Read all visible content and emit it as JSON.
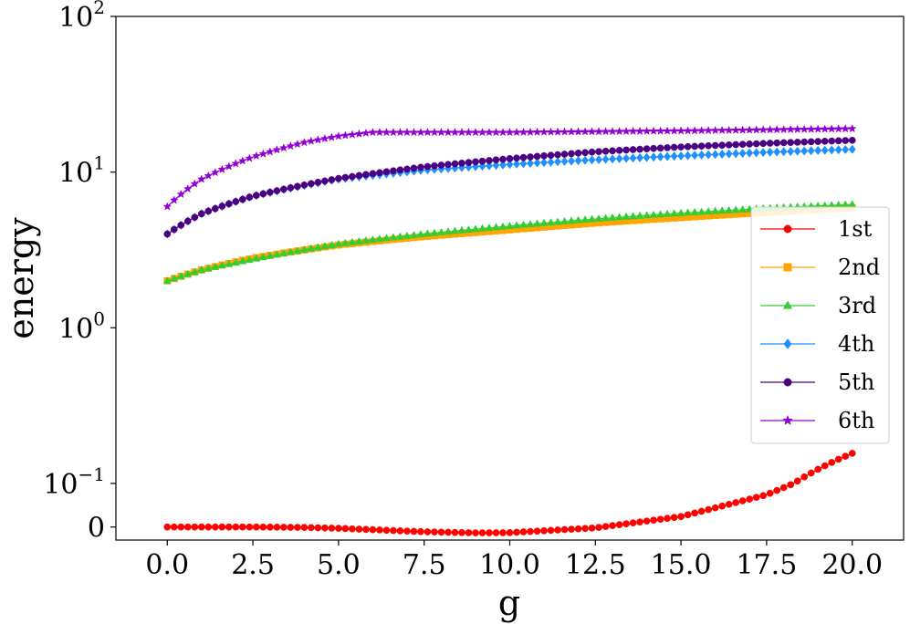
{
  "chart_data": {
    "type": "line",
    "title": "",
    "xlabel": "g",
    "ylabel": "energy",
    "xlim": [
      -1.5,
      21.5
    ],
    "x_ticks": [
      0,
      2.5,
      5,
      7.5,
      10,
      12.5,
      15,
      17.5,
      20
    ],
    "x_tick_labels": [
      "0.0",
      "2.5",
      "5.0",
      "7.5",
      "10.0",
      "12.5",
      "15.0",
      "17.5",
      "20.0"
    ],
    "y_scale": "symlog",
    "ylim": [
      -0.03,
      100
    ],
    "y_ticks": [
      0,
      0.1,
      1,
      10,
      100
    ],
    "y_tick_labels": [
      {
        "base": "0",
        "exp": ""
      },
      {
        "base": "10",
        "exp": "−1"
      },
      {
        "base": "10",
        "exp": "0"
      },
      {
        "base": "10",
        "exp": "1"
      },
      {
        "base": "10",
        "exp": "2"
      }
    ],
    "grid": false,
    "legend_position": "center-right",
    "x_range": [
      0,
      20
    ],
    "points_per_series": 101,
    "series": [
      {
        "name": "1st",
        "color": "#ff0000",
        "marker": "circle",
        "keyframes": [
          [
            0,
            0
          ],
          [
            2.5,
            0
          ],
          [
            4,
            -0.001
          ],
          [
            5,
            -0.003
          ],
          [
            7.5,
            -0.011
          ],
          [
            9,
            -0.0135
          ],
          [
            10,
            -0.013
          ],
          [
            12.5,
            -0.002
          ],
          [
            15,
            0.024
          ],
          [
            17.5,
            0.074
          ],
          [
            20,
            0.156
          ]
        ]
      },
      {
        "name": "2nd",
        "color": "#ffa500",
        "marker": "square",
        "keyframes": [
          [
            0,
            2
          ],
          [
            1,
            2.35
          ],
          [
            2.5,
            2.8
          ],
          [
            5,
            3.4
          ],
          [
            7.5,
            3.85
          ],
          [
            10,
            4.25
          ],
          [
            12.5,
            4.7
          ],
          [
            15,
            5.1
          ],
          [
            17.5,
            5.5
          ],
          [
            20,
            5.9
          ]
        ]
      },
      {
        "name": "3rd",
        "color": "#32cd32",
        "marker": "triangle",
        "keyframes": [
          [
            0,
            2
          ],
          [
            1,
            2.35
          ],
          [
            2.5,
            2.75
          ],
          [
            5,
            3.45
          ],
          [
            7.5,
            4
          ],
          [
            10,
            4.5
          ],
          [
            12.5,
            5
          ],
          [
            15,
            5.45
          ],
          [
            17.5,
            5.85
          ],
          [
            20,
            6.2
          ]
        ]
      },
      {
        "name": "4th",
        "color": "#1e90ff",
        "marker": "diamond",
        "keyframes": [
          [
            0,
            4
          ],
          [
            0.5,
            4.7
          ],
          [
            1,
            5.4
          ],
          [
            2.5,
            7
          ],
          [
            5,
            9
          ],
          [
            7.5,
            10.3
          ],
          [
            10,
            11.2
          ],
          [
            12.5,
            12
          ],
          [
            15,
            12.7
          ],
          [
            17.5,
            13.4
          ],
          [
            20,
            14
          ]
        ]
      },
      {
        "name": "5th",
        "color": "#4b0082",
        "marker": "circle",
        "keyframes": [
          [
            0,
            4
          ],
          [
            0.5,
            4.7
          ],
          [
            1,
            5.4
          ],
          [
            2.5,
            7
          ],
          [
            5,
            9.1
          ],
          [
            7.5,
            10.8
          ],
          [
            10,
            12.2
          ],
          [
            12.5,
            13.5
          ],
          [
            15,
            14.5
          ],
          [
            17.5,
            15.3
          ],
          [
            20,
            16
          ]
        ]
      },
      {
        "name": "6th",
        "color": "#9400d3",
        "marker": "star",
        "keyframes": [
          [
            0,
            6
          ],
          [
            0.5,
            7.5
          ],
          [
            1,
            9
          ],
          [
            2.5,
            12.5
          ],
          [
            4,
            15.5
          ],
          [
            5,
            17
          ],
          [
            6,
            18
          ],
          [
            7.5,
            18
          ],
          [
            10,
            18
          ],
          [
            15,
            18.4
          ],
          [
            20,
            19
          ]
        ]
      }
    ]
  }
}
